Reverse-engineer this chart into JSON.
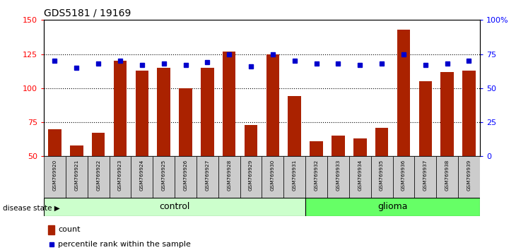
{
  "title": "GDS5181 / 19169",
  "samples": [
    "GSM769920",
    "GSM769921",
    "GSM769922",
    "GSM769923",
    "GSM769924",
    "GSM769925",
    "GSM769926",
    "GSM769927",
    "GSM769928",
    "GSM769929",
    "GSM769930",
    "GSM769931",
    "GSM769932",
    "GSM769933",
    "GSM769934",
    "GSM769935",
    "GSM769936",
    "GSM769937",
    "GSM769938",
    "GSM769939"
  ],
  "counts": [
    70,
    58,
    67,
    120,
    113,
    115,
    100,
    115,
    127,
    73,
    125,
    94,
    61,
    65,
    63,
    71,
    143,
    105,
    112,
    113
  ],
  "percentiles": [
    70,
    65,
    68,
    70,
    67,
    68,
    67,
    69,
    75,
    66,
    75,
    70,
    68,
    68,
    67,
    68,
    75,
    67,
    68,
    70
  ],
  "n_control": 12,
  "n_glioma": 8,
  "bar_color": "#aa2200",
  "dot_color": "#0000cc",
  "ylim_left": [
    50,
    150
  ],
  "ylim_right": [
    0,
    100
  ],
  "yticks_left": [
    50,
    75,
    100,
    125,
    150
  ],
  "yticks_right": [
    0,
    25,
    50,
    75,
    100
  ],
  "control_color": "#ccffcc",
  "glioma_color": "#66ff66",
  "label_bg_color": "#cccccc",
  "legend_count_label": "count",
  "legend_pct_label": "percentile rank within the sample",
  "disease_state_label": "disease state",
  "control_label": "control",
  "glioma_label": "glioma",
  "gridlines": [
    75,
    100,
    125
  ]
}
